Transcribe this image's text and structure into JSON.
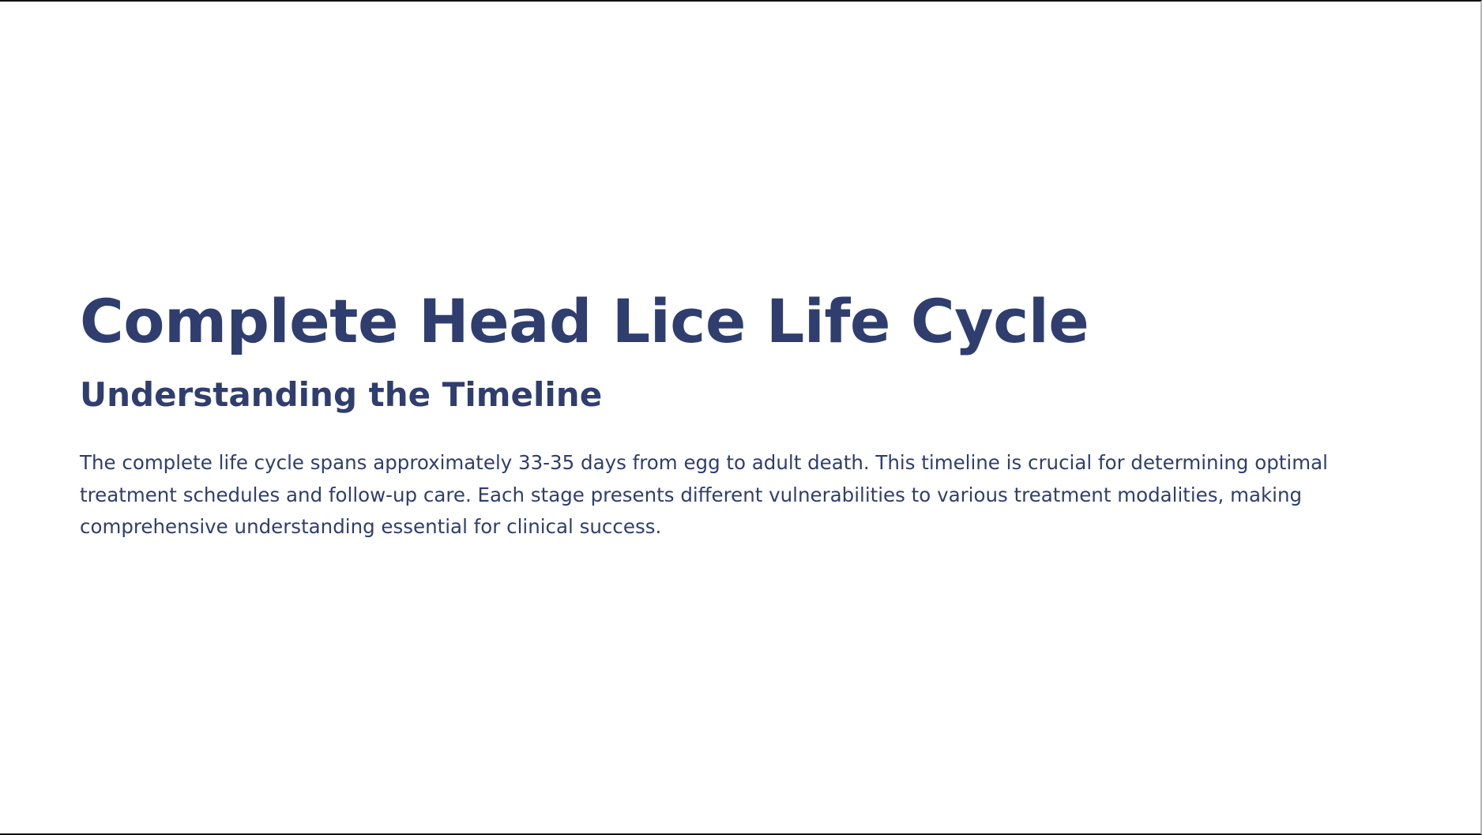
{
  "slide": {
    "title": "Complete Head Lice Life Cycle",
    "subtitle": "Understanding the Timeline",
    "body": "The complete life cycle spans approximately 33-35 days from egg to adult death. This timeline is crucial for determining optimal treatment schedules and follow-up care. Each stage presents different vulnerabilities to various treatment modalities, making comprehensive understanding essential for clinical success."
  },
  "colors": {
    "accent": "#2f3e6e",
    "background": "#ffffff"
  }
}
